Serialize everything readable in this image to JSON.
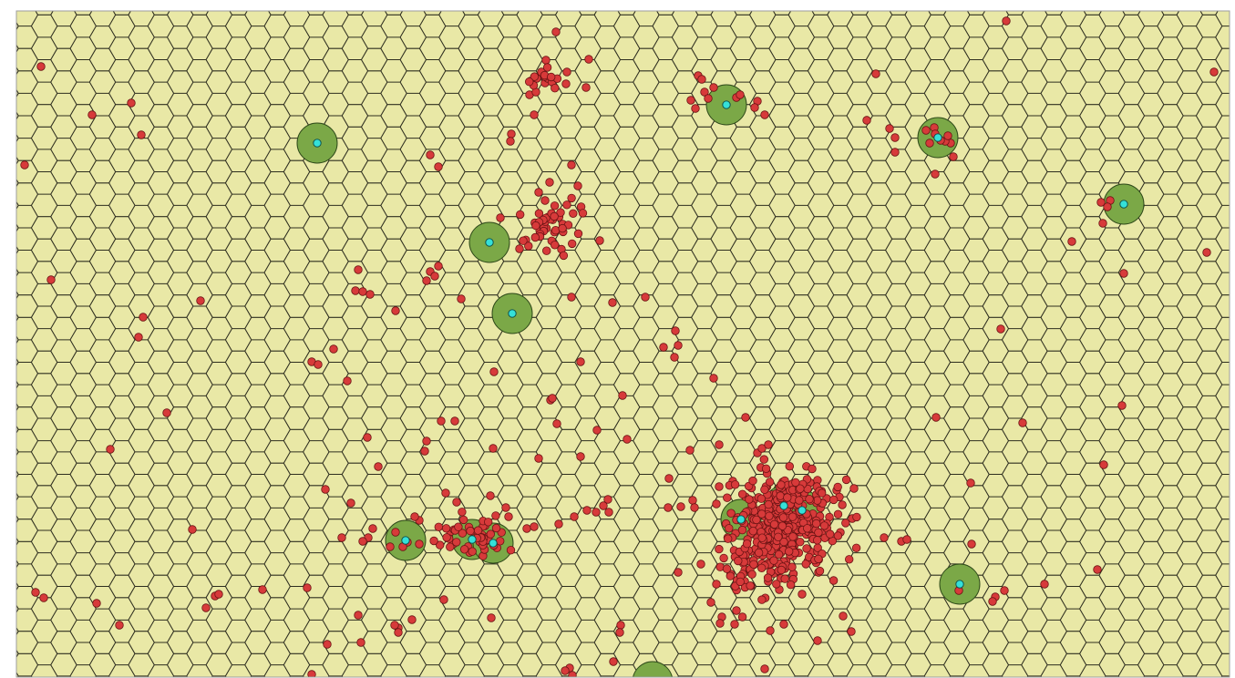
{
  "map": {
    "style": {
      "background": "#e9e8a6",
      "hex_stroke": "#2e2e1f",
      "frame_stroke": "#9e9e9e",
      "buffer_fill": "#7ba847",
      "buffer_stroke": "#2f4a1a",
      "site_fill": "#35e0d8",
      "incident_fill": "#d73a3a",
      "incident_stroke": "#6b1414"
    },
    "layers": [
      "hex-grid",
      "site-buffers",
      "incident-points",
      "site-points"
    ]
  }
}
